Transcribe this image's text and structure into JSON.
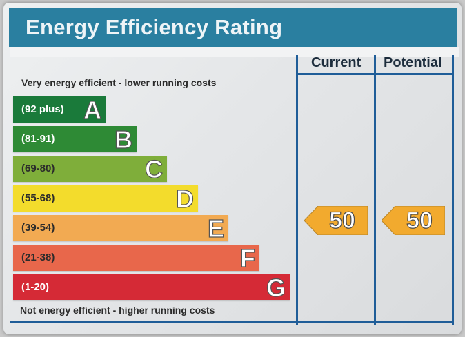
{
  "title": "Energy Efficiency Rating",
  "top_note": "Very energy efficient - lower running costs",
  "bottom_note": "Not energy efficient - higher running costs",
  "columns": {
    "current": "Current",
    "potential": "Potential"
  },
  "bands": [
    {
      "letter": "A",
      "range": "(92 plus)",
      "color": "#1a7a3a",
      "text_color": "#ffffff"
    },
    {
      "letter": "B",
      "range": "(81-91)",
      "color": "#2e8a35",
      "text_color": "#ffffff"
    },
    {
      "letter": "C",
      "range": "(69-80)",
      "color": "#7fae3a",
      "text_color": "#2b2b2b"
    },
    {
      "letter": "D",
      "range": "(55-68)",
      "color": "#f3dc2c",
      "text_color": "#2b2b2b"
    },
    {
      "letter": "E",
      "range": "(39-54)",
      "color": "#f2aa52",
      "text_color": "#2b2b2b"
    },
    {
      "letter": "F",
      "range": "(21-38)",
      "color": "#e8674b",
      "text_color": "#2b2b2b"
    },
    {
      "letter": "G",
      "range": "(1-20)",
      "color": "#d52a36",
      "text_color": "#ffffff"
    }
  ],
  "ratings": {
    "current": "50",
    "potential": "50",
    "band": "E",
    "arrow_color": "#f2aa2e"
  },
  "chart_data": {
    "type": "bar",
    "title": "Energy Efficiency Rating",
    "categories": [
      "A",
      "B",
      "C",
      "D",
      "E",
      "F",
      "G"
    ],
    "ranges": [
      "(92 plus)",
      "(81-91)",
      "(69-80)",
      "(55-68)",
      "(39-54)",
      "(21-38)",
      "(1-20)"
    ],
    "current": 50,
    "potential": 50,
    "current_band": "E",
    "potential_band": "E"
  }
}
